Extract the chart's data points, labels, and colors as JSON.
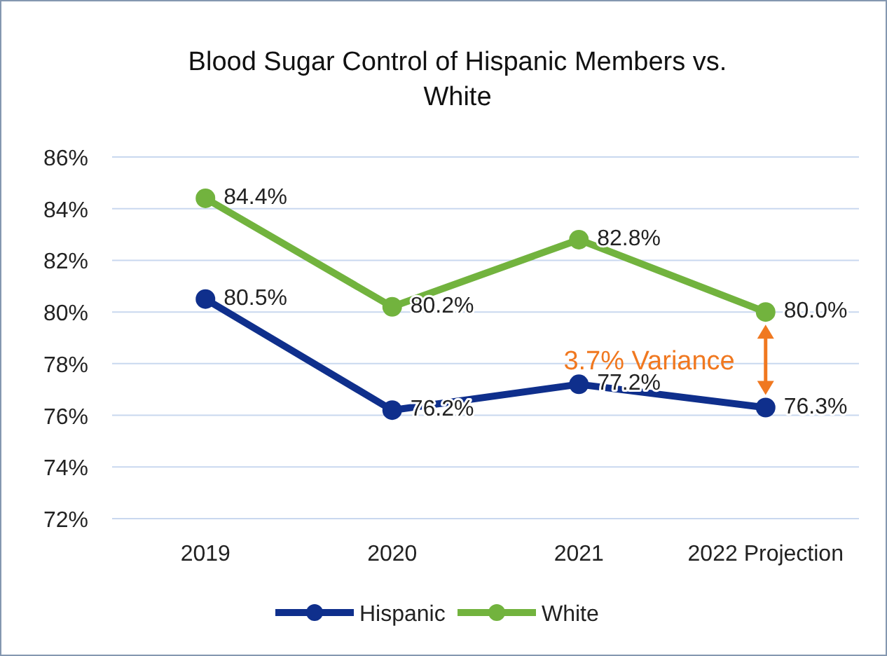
{
  "chart_data": {
    "type": "line",
    "title": "Blood Sugar Control of Hispanic Members vs. White",
    "categories": [
      "2019",
      "2020",
      "2021",
      "2022 Projection"
    ],
    "series": [
      {
        "name": "Hispanic",
        "color": "#0f2f8c",
        "values": [
          80.5,
          76.2,
          77.2,
          76.3
        ],
        "value_labels": [
          "80.5%",
          "76.2%",
          "77.2%",
          "76.3%"
        ]
      },
      {
        "name": "White",
        "color": "#72b33e",
        "values": [
          84.4,
          80.2,
          82.8,
          80.0
        ],
        "value_labels": [
          "84.4%",
          "80.2%",
          "82.8%",
          "80.0%"
        ]
      }
    ],
    "ylim": [
      72,
      86
    ],
    "yticks": [
      {
        "value": 72,
        "label": "72%"
      },
      {
        "value": 74,
        "label": "74%"
      },
      {
        "value": 76,
        "label": "76%"
      },
      {
        "value": 78,
        "label": "78%"
      },
      {
        "value": 80,
        "label": "80%"
      },
      {
        "value": 82,
        "label": "82%"
      },
      {
        "value": 84,
        "label": "84%"
      },
      {
        "value": 86,
        "label": "86%"
      }
    ],
    "grid": "y",
    "legend": "bottom",
    "marker": "circle",
    "line_style": "solid",
    "annotations": [
      "3.7% Variance"
    ]
  }
}
